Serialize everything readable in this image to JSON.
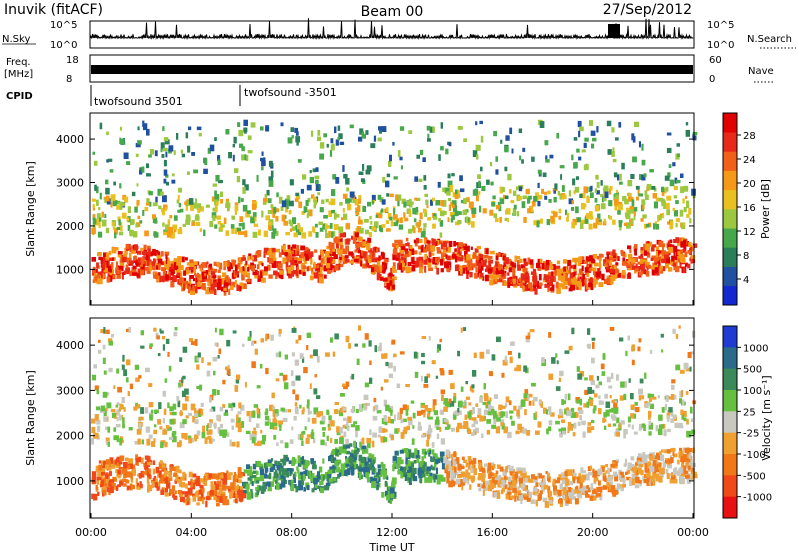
{
  "header": {
    "station": "Inuvik (fitACF)",
    "beam": "Beam 00",
    "date": "27/Sep/2012"
  },
  "nsky": {
    "label": "N.Sky",
    "ticks": [
      "10^5",
      "10^0"
    ],
    "right_label": "N.Search",
    "right_ticks": [
      "10^5",
      "10^0"
    ]
  },
  "freq": {
    "label_lines": [
      "Freq.",
      "[MHz]"
    ],
    "ticks": [
      "18",
      "8"
    ],
    "right_label": "Nave",
    "right_ticks": [
      "60",
      "0"
    ]
  },
  "cpid": {
    "label": "CPID",
    "entries": [
      "twofsound 3501",
      "twofsound -3501"
    ]
  },
  "chart_data": [
    {
      "type": "heatmap",
      "title": "",
      "quantity": "Power",
      "xlabel": "",
      "ylabel": "Slant Range [km]",
      "x_ticks": [
        "00:00",
        "04:00",
        "08:00",
        "12:00",
        "16:00",
        "20:00",
        "00:00"
      ],
      "y_ticks": [
        1000,
        2000,
        3000,
        4000
      ],
      "ylim": [
        180,
        4600
      ],
      "colorbar": {
        "label": "Power [dB]",
        "ticks": [
          "4",
          "8",
          "12",
          "16",
          "20",
          "24",
          "28"
        ],
        "colors": [
          "#1428d2",
          "#2050a0",
          "#2a7e5a",
          "#46a84a",
          "#9cc840",
          "#e8c020",
          "#f59a18",
          "#f06018",
          "#e82818",
          "#e00000"
        ]
      }
    },
    {
      "type": "heatmap",
      "title": "",
      "quantity": "Velocity",
      "xlabel": "Time UT",
      "ylabel": "Slant Range [km]",
      "x_ticks": [
        "00:00",
        "04:00",
        "08:00",
        "12:00",
        "16:00",
        "20:00",
        "00:00"
      ],
      "y_ticks": [
        1000,
        2000,
        3000,
        4000
      ],
      "ylim": [
        180,
        4600
      ],
      "colorbar": {
        "label": "Velocity  [m s⁻¹]",
        "ticks": [
          "1000",
          "500",
          "100",
          "25",
          "-25",
          "-100",
          "-500",
          "-1000"
        ],
        "colors": [
          "#1e3cd2",
          "#2a6a8a",
          "#3a8a5a",
          "#66c040",
          "#c8c8c0",
          "#f0a030",
          "#f07818",
          "#f04818",
          "#e81010"
        ]
      }
    }
  ]
}
